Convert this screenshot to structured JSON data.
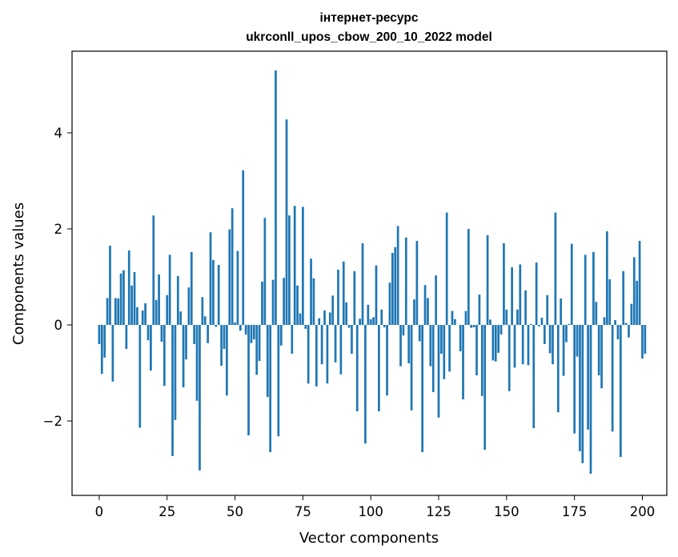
{
  "chart_data": {
    "type": "bar",
    "title_line1": "інтернет-ресурс",
    "title_line2": "ukrconll_upos_cbow_200_10_2022 model",
    "xlabel": "Vector components",
    "ylabel": "Components values",
    "xlim": [
      -10,
      209
    ],
    "ylim": [
      -3.55,
      5.7
    ],
    "xticks": [
      0,
      25,
      50,
      75,
      100,
      125,
      150,
      175,
      200
    ],
    "yticks": [
      -2,
      0,
      2,
      4
    ],
    "ytick_labels": [
      "−2",
      "0",
      "2",
      "4"
    ],
    "bar_color": "#1f77b4",
    "grid": false,
    "values": [
      -0.4,
      -1.02,
      -0.68,
      0.56,
      1.65,
      -1.18,
      0.56,
      0.55,
      1.07,
      1.14,
      -0.5,
      1.55,
      0.82,
      1.1,
      0.37,
      -2.14,
      0.3,
      0.45,
      -0.32,
      -0.95,
      2.28,
      0.52,
      1.05,
      -0.35,
      -1.27,
      0.62,
      1.46,
      -2.73,
      -1.98,
      1.02,
      0.28,
      -1.3,
      -0.72,
      0.78,
      1.52,
      -0.4,
      -1.58,
      -3.03,
      0.58,
      0.18,
      -0.38,
      1.93,
      1.35,
      -0.04,
      1.25,
      -0.85,
      -0.5,
      -1.47,
      1.99,
      2.43,
      0.05,
      1.54,
      -0.12,
      3.22,
      -0.2,
      -2.3,
      -0.38,
      -0.3,
      -1.04,
      -0.75,
      0.9,
      2.23,
      -1.5,
      -2.65,
      0.94,
      5.3,
      -2.32,
      -0.43,
      0.98,
      4.28,
      2.28,
      -0.6,
      2.48,
      0.82,
      0.24,
      2.46,
      -0.08,
      -1.22,
      1.38,
      0.97,
      -1.28,
      0.14,
      -0.82,
      0.3,
      -1.22,
      0.26,
      0.61,
      -0.78,
      1.15,
      -1.03,
      1.32,
      0.47,
      -0.06,
      -0.6,
      1.12,
      -1.8,
      0.13,
      1.7,
      -2.47,
      0.42,
      0.12,
      0.16,
      1.24,
      -1.8,
      0.32,
      -0.05,
      -1.47,
      0.88,
      1.5,
      1.62,
      2.06,
      -0.86,
      -0.22,
      1.82,
      -0.8,
      -1.78,
      0.53,
      1.75,
      -0.34,
      -2.65,
      0.83,
      0.56,
      -0.86,
      -1.4,
      1.03,
      -1.93,
      -0.6,
      -1.13,
      2.34,
      -0.97,
      0.29,
      0.12,
      0.0,
      -0.55,
      -1.55,
      0.29,
      2.0,
      -0.06,
      -0.05,
      -1.05,
      0.63,
      -1.48,
      -2.6,
      1.87,
      0.11,
      -0.74,
      -0.76,
      -0.58,
      -0.2,
      1.7,
      0.32,
      -1.38,
      1.2,
      -0.89,
      0.32,
      1.26,
      -0.82,
      0.72,
      -0.84,
      0.02,
      -2.15,
      1.3,
      -0.03,
      0.15,
      -0.4,
      0.62,
      -0.59,
      -0.82,
      2.34,
      -1.82,
      0.55,
      -1.06,
      -0.36,
      0.02,
      1.69,
      -2.26,
      -0.66,
      -2.63,
      -2.88,
      1.46,
      -2.18,
      -3.1,
      1.52,
      0.48,
      -1.05,
      -1.32,
      0.16,
      1.95,
      0.95,
      -2.22,
      0.1,
      -0.3,
      -2.75,
      1.12,
      0.04,
      -0.26,
      0.44,
      1.41,
      0.92,
      1.75,
      -0.7,
      -0.6
    ]
  }
}
